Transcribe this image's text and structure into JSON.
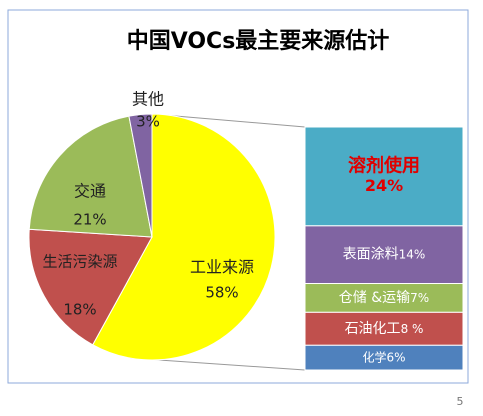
{
  "chart_data": [
    {
      "type": "pie",
      "title": "中国VOCs最主要来源估计",
      "categories": [
        "工业来源",
        "生活污染源",
        "交通",
        "其他"
      ],
      "values": [
        58,
        18,
        21,
        3
      ],
      "value_labels": [
        "58%",
        "18%",
        "21%",
        "3%"
      ],
      "colors": [
        "#ffff00",
        "#c0504d",
        "#9bbb59",
        "#8064a2"
      ]
    },
    {
      "type": "bar",
      "categories": [
        "溶剂使用",
        "表面涂料",
        "仓储 &运输",
        "石油化工",
        "化学"
      ],
      "values": [
        24,
        14,
        7,
        8,
        6
      ],
      "value_labels": [
        "24%",
        "14%",
        "7%",
        "8 %",
        "6%"
      ],
      "colors": [
        "#4bacc6",
        "#8064a2",
        "#9bbb59",
        "#c0504d",
        "#4f81bd"
      ]
    }
  ],
  "page_number": "5"
}
